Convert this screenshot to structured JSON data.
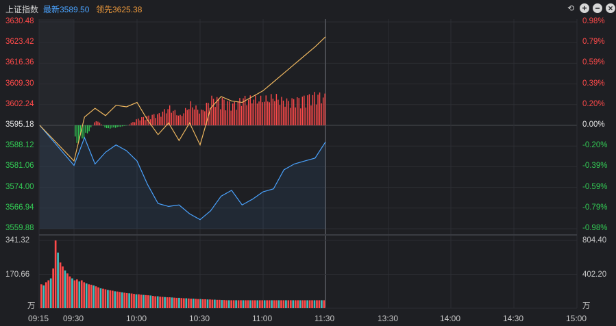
{
  "header": {
    "title": "上证指数",
    "latest": "最新3589.50",
    "leader": "领先3625.38",
    "icons": [
      "undo-icon",
      "zoom-in-icon",
      "zoom-out-icon",
      "close-icon"
    ]
  },
  "colors": {
    "price_line": "#4aa3ff",
    "leader_line": "#f0b860",
    "up": "#ff4a4a",
    "down": "#33cc55",
    "vol_up": "#ff4a4a",
    "vol_down": "#3fbfbf",
    "grid": "#2c2e33"
  },
  "chart_data": {
    "type": "line",
    "title": "上证指数",
    "prev_close": 3595.18,
    "ylim": [
      3559.88,
      3630.48
    ],
    "price_ticks": [
      "3630.48",
      "3623.42",
      "3616.36",
      "3609.30",
      "3602.24",
      "3595.18",
      "3588.12",
      "3581.06",
      "3574.00",
      "3566.94",
      "3559.88"
    ],
    "pct_ticks": [
      "0.98%",
      "0.79%",
      "0.59%",
      "0.39%",
      "0.20%",
      "0.00%",
      "-0.20%",
      "-0.39%",
      "-0.59%",
      "-0.79%",
      "-0.98%"
    ],
    "volume_ticks_left": [
      "341.32",
      "170.66",
      "万"
    ],
    "volume_ticks_right": [
      "804.40",
      "402.20",
      "万"
    ],
    "x_ticks": [
      "09:15",
      "09:30",
      "10:00",
      "10:30",
      "11:00",
      "11:30",
      "13:30",
      "14:00",
      "14:30",
      "15:00"
    ],
    "series": [
      {
        "name": "最新",
        "x": [
          "09:30",
          "09:35",
          "09:40",
          "09:45",
          "09:50",
          "09:55",
          "10:00",
          "10:05",
          "10:10",
          "10:15",
          "10:20",
          "10:25",
          "10:30",
          "10:35",
          "10:40",
          "10:45",
          "10:50",
          "10:55",
          "11:00",
          "11:05",
          "11:10",
          "11:15",
          "11:20",
          "11:25",
          "11:30"
        ],
        "values": [
          3581.5,
          3591.0,
          3582.0,
          3586.0,
          3588.5,
          3586.5,
          3583.0,
          3575.0,
          3568.5,
          3567.5,
          3568.0,
          3565.0,
          3563.0,
          3566.0,
          3571.0,
          3573.0,
          3568.0,
          3570.0,
          3572.5,
          3573.5,
          3580.0,
          3582.0,
          3583.0,
          3584.0,
          3589.5
        ]
      },
      {
        "name": "领先",
        "x": [
          "09:30",
          "09:35",
          "09:40",
          "09:45",
          "09:50",
          "09:55",
          "10:00",
          "10:05",
          "10:10",
          "10:15",
          "10:20",
          "10:25",
          "10:30",
          "10:35",
          "10:40",
          "10:45",
          "10:50",
          "10:55",
          "11:00",
          "11:05",
          "11:10",
          "11:15",
          "11:20",
          "11:25",
          "11:30"
        ],
        "values": [
          3583.0,
          3598.0,
          3601.0,
          3598.5,
          3602.0,
          3601.5,
          3603.0,
          3597.0,
          3592.0,
          3596.0,
          3590.0,
          3596.0,
          3588.5,
          3601.0,
          3605.0,
          3603.5,
          3603.0,
          3605.0,
          3607.0,
          3610.0,
          3613.0,
          3616.0,
          3619.0,
          3622.0,
          3625.38
        ]
      }
    ],
    "volume": {
      "unit": "万",
      "ylim": [
        0,
        341.32
      ],
      "values": [
        120,
        115,
        130,
        140,
        150,
        200,
        341,
        280,
        230,
        210,
        190,
        175,
        160,
        150,
        140,
        145,
        135,
        140,
        130,
        125,
        120,
        118,
        115,
        110,
        105,
        100,
        98,
        95,
        92,
        90,
        88,
        85,
        84,
        82,
        80,
        78,
        76,
        75,
        74,
        72,
        70,
        70,
        68,
        67,
        66,
        65,
        64,
        62,
        60,
        60,
        58,
        57,
        56,
        55,
        55,
        54,
        53,
        52,
        52,
        51,
        50,
        50,
        49,
        48,
        48,
        47,
        46,
        46,
        45,
        45,
        44,
        44,
        43,
        43,
        42,
        42,
        41,
        41,
        40,
        40,
        40,
        40,
        40,
        40,
        40,
        40,
        40,
        40,
        40,
        40,
        40,
        40,
        40,
        40,
        40,
        40,
        40,
        40,
        40,
        40,
        40,
        40,
        40,
        40,
        40,
        40,
        40,
        40,
        40,
        40,
        40,
        40,
        40,
        40,
        40,
        40,
        40,
        40,
        40,
        40
      ]
    }
  }
}
